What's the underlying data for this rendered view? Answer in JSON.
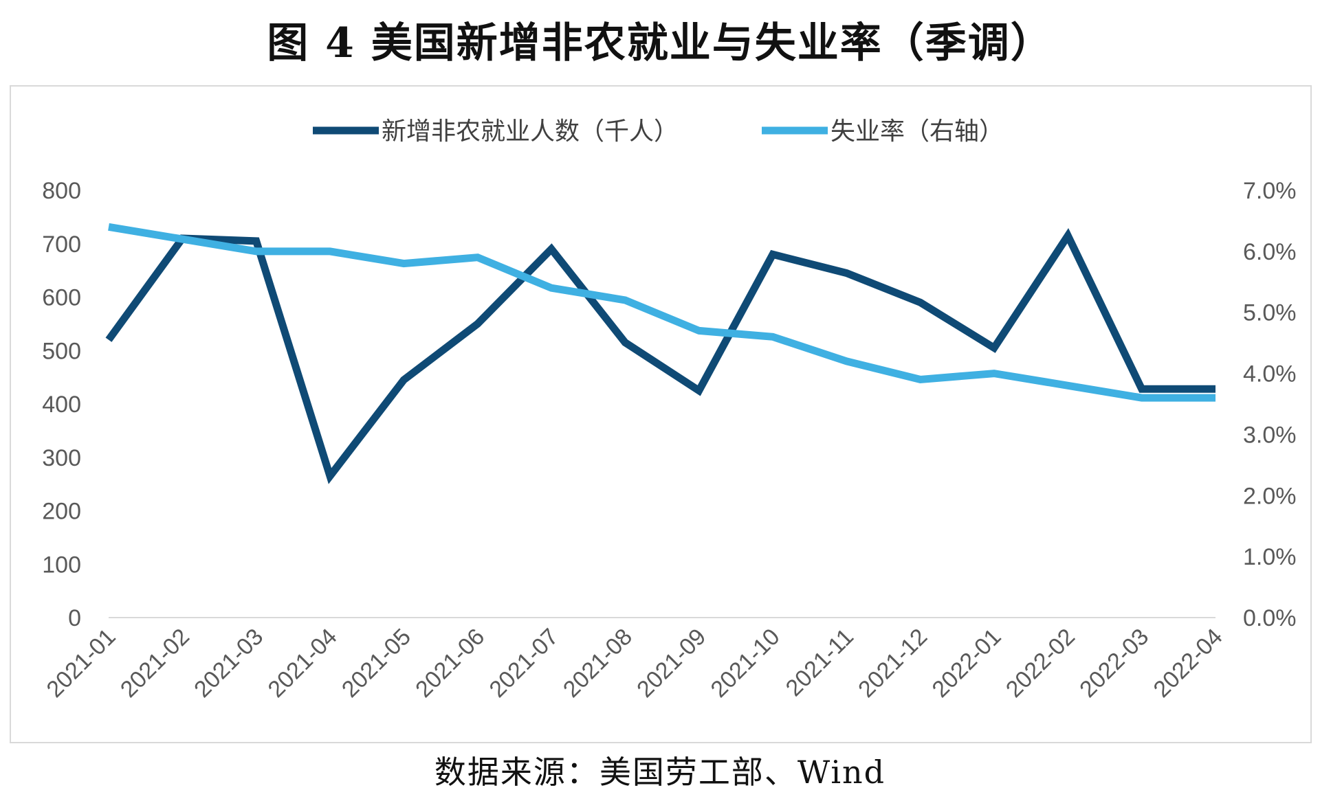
{
  "figure": {
    "title": "图 4 美国新增非农就业与失业率（季调）",
    "source": "数据来源：美国劳工部、Wind"
  },
  "chart_data": {
    "type": "line",
    "title": "图 4 美国新增非农就业与失业率（季调）",
    "categories": [
      "2021-01",
      "2021-02",
      "2021-03",
      "2021-04",
      "2021-05",
      "2021-06",
      "2021-07",
      "2021-08",
      "2021-09",
      "2021-10",
      "2021-11",
      "2021-12",
      "2022-01",
      "2022-02",
      "2022-03",
      "2022-04"
    ],
    "series": [
      {
        "name": "新增非农就业人数（千人）",
        "axis": "left",
        "color": "#0f4a75",
        "values": [
          520,
          710,
          705,
          265,
          445,
          550,
          690,
          515,
          425,
          680,
          645,
          590,
          505,
          715,
          428,
          428
        ]
      },
      {
        "name": "失业率（右轴）",
        "axis": "right",
        "color": "#3fb0e2",
        "values": [
          6.4,
          6.2,
          6.0,
          6.0,
          5.8,
          5.9,
          5.4,
          5.2,
          4.7,
          4.6,
          4.2,
          3.9,
          4.0,
          3.8,
          3.6,
          3.6
        ]
      }
    ],
    "y_left": {
      "min": 0,
      "max": 800,
      "step": 100,
      "tick_labels": [
        "0",
        "100",
        "200",
        "300",
        "400",
        "500",
        "600",
        "700",
        "800"
      ]
    },
    "y_right": {
      "min": 0,
      "max": 7,
      "step": 1,
      "tick_labels": [
        "0.0%",
        "1.0%",
        "2.0%",
        "3.0%",
        "4.0%",
        "5.0%",
        "6.0%",
        "7.0%"
      ]
    },
    "grid": false,
    "legend_position": "top"
  }
}
